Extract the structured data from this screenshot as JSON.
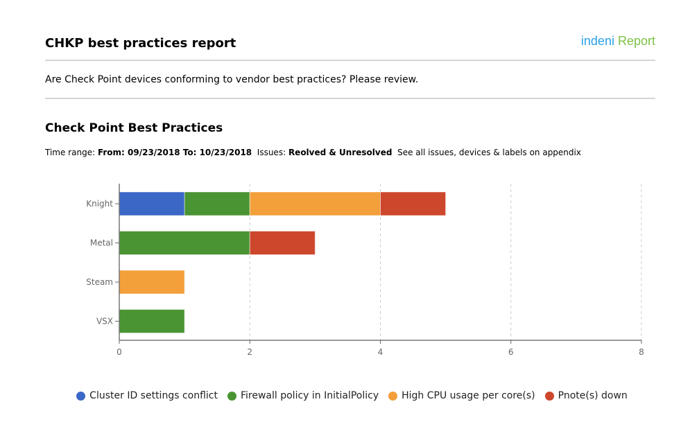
{
  "header": {
    "title": "CHKP best practices report",
    "logo_part1": "indeni",
    "logo_part2": "Report"
  },
  "description": "Are Check Point devices conforming to vendor best practices? Please review.",
  "section_title": "Check Point Best Practices",
  "meta": {
    "time_label": "Time range:",
    "time_value": "From: 09/23/2018 To: 10/23/2018",
    "issues_label": "Issues:",
    "issues_value": "Reolved & Unresolved",
    "appendix": "See all issues, devices & labels on appendix"
  },
  "chart_data": {
    "type": "bar",
    "orientation": "horizontal",
    "stacked": true,
    "categories": [
      "Knight",
      "Metal",
      "Steam",
      "VSX"
    ],
    "series": [
      {
        "name": "Cluster ID settings conflict",
        "color": "#3b67c6",
        "values": [
          1,
          0,
          0,
          0
        ]
      },
      {
        "name": "Firewall policy in InitialPolicy",
        "color": "#4a9433",
        "values": [
          1,
          2,
          0,
          1
        ]
      },
      {
        "name": "High CPU usage per core(s)",
        "color": "#f39f3a",
        "values": [
          2,
          0,
          1,
          0
        ]
      },
      {
        "name": "Pnote(s) down",
        "color": "#cd472d",
        "values": [
          1,
          1,
          0,
          0
        ]
      }
    ],
    "xlim": [
      0,
      8
    ],
    "xticks": [
      0,
      2,
      4,
      6,
      8
    ],
    "grid": true,
    "legend": "bottom"
  }
}
